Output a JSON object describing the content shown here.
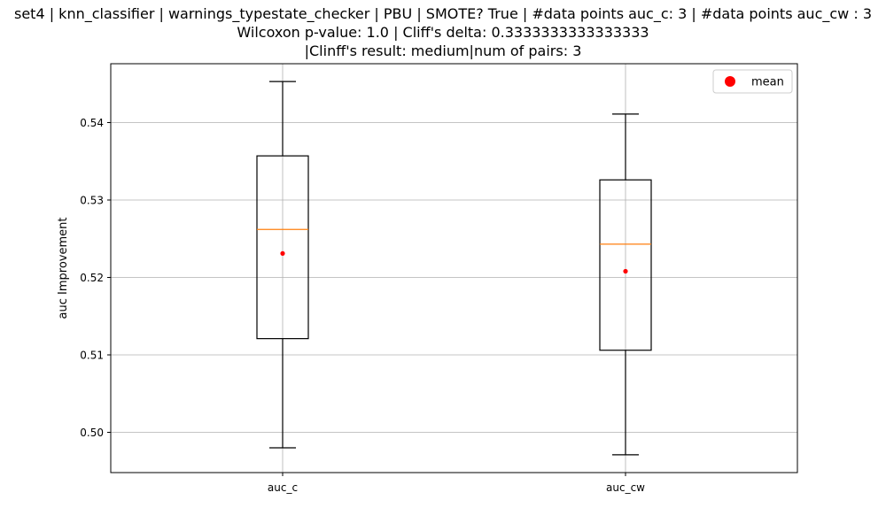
{
  "chart_data": {
    "type": "box",
    "title_lines": [
      "set4 | knn_classifier | warnings_typestate_checker | PBU | SMOTE? True | #data points auc_c: 3 | #data points auc_cw : 3",
      "Wilcoxon p-value: 1.0 | Cliff's delta: 0.3333333333333333",
      "|Clinff's result: medium|num of pairs: 3"
    ],
    "ylabel": "auc Improvement",
    "ylim": [
      0.4948,
      0.5476
    ],
    "yticks": [
      0.5,
      0.51,
      0.52,
      0.53,
      0.54
    ],
    "ytick_labels": [
      "0.50",
      "0.51",
      "0.52",
      "0.53",
      "0.54"
    ],
    "categories": [
      "auc_c",
      "auc_cw"
    ],
    "boxes": [
      {
        "name": "auc_c",
        "whisker_low": 0.498,
        "q1": 0.5121,
        "median": 0.5262,
        "q3": 0.5357,
        "whisker_high": 0.5453,
        "mean": 0.5231
      },
      {
        "name": "auc_cw",
        "whisker_low": 0.4971,
        "q1": 0.5106,
        "median": 0.5243,
        "q3": 0.5326,
        "whisker_high": 0.5411,
        "mean": 0.5208
      }
    ],
    "legend": {
      "label": "mean",
      "placement": "top-right"
    },
    "grid": true,
    "colors": {
      "median": "#ff7f0e",
      "mean": "#ff0000",
      "box": "#000000",
      "grid": "#b0b0b0"
    }
  }
}
